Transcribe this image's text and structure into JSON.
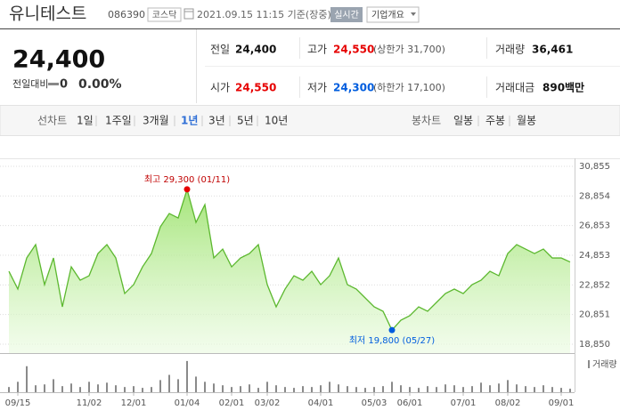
{
  "header": {
    "name": "유니테스트",
    "code": "086390",
    "market": "코스닥",
    "time": "2021.09.15 11:15 기준(장중)",
    "realtime": "실시간",
    "company_info": "기업개요"
  },
  "quote": {
    "price": "24,400",
    "change_label": "전일대비",
    "change": "0",
    "change_rate": "0.00%",
    "stats": [
      {
        "label": "전일",
        "value": "24,400"
      },
      {
        "label": "고가",
        "value": "24,550",
        "note": "(상한가 31,700)"
      },
      {
        "label": "거래량",
        "value": "36,461"
      },
      {
        "label": "시가",
        "value": "24,550"
      },
      {
        "label": "저가",
        "value": "24,300",
        "note": "(하한가 17,100)"
      },
      {
        "label": "거래대금",
        "value": "890",
        "unit": "백만"
      }
    ]
  },
  "tabs": {
    "line_label": "선차트",
    "line": [
      "1일",
      "1주일",
      "3개월",
      "1년",
      "3년",
      "5년",
      "10년"
    ],
    "candle_label": "봉차트",
    "candle": [
      "일봉",
      "주봉",
      "월봉"
    ]
  },
  "chart_data": {
    "type": "line",
    "categories": [
      null,
      "09/15",
      null,
      null,
      null,
      null,
      null,
      null,
      null,
      "11/02",
      null,
      null,
      null,
      null,
      "12/01",
      null,
      null,
      null,
      null,
      null,
      "01/04",
      null,
      null,
      null,
      null,
      "02/01",
      null,
      null,
      null,
      "03/02",
      null,
      null,
      null,
      null,
      null,
      "04/01",
      null,
      null,
      null,
      null,
      null,
      "05/03",
      null,
      null,
      null,
      "06/01",
      null,
      null,
      null,
      null,
      null,
      "07/01",
      null,
      null,
      null,
      null,
      "08/02",
      null,
      null,
      null,
      null,
      null,
      "09/01",
      null
    ],
    "series": [
      {
        "color": "#5cb82f",
        "values": [
          23770,
          22570,
          24670,
          25570,
          22870,
          24670,
          21370,
          24070,
          23170,
          23470,
          24970,
          25570,
          24670,
          22270,
          22870,
          24070,
          24970,
          26770,
          27670,
          27370,
          29300,
          27070,
          28270,
          24670,
          25270,
          24070,
          24670,
          24970,
          25570,
          22870,
          21370,
          22570,
          23470,
          23170,
          23770,
          22870,
          23470,
          24670,
          22870,
          22570,
          21970,
          21370,
          21070,
          19800,
          20470,
          20770,
          21370,
          21070,
          21670,
          22270,
          22570,
          22270,
          22870,
          23170,
          23770,
          23470,
          24970,
          25570,
          25270,
          24970,
          25270,
          24670,
          24670,
          24400
        ]
      }
    ],
    "ylim": [
      18850,
      30855
    ],
    "yticks": [
      {
        "value": 30855,
        "label": "30,855"
      },
      {
        "value": 28854,
        "label": "28,854"
      },
      {
        "value": 26853,
        "label": "26,853"
      },
      {
        "value": 24853,
        "label": "24,853"
      },
      {
        "value": 22852,
        "label": "22,852"
      },
      {
        "value": 20851,
        "label": "20,851"
      },
      {
        "value": 18850,
        "label": "18,850"
      }
    ],
    "grid": true,
    "max_label": "최고 29,300 (01/11)",
    "min_label": "최저 19,800 (05/27)",
    "volume": {
      "name": "거래량",
      "color": "#8a8a8a",
      "ylim": [
        0,
        400
      ],
      "values": [
        60,
        120,
        300,
        80,
        90,
        150,
        70,
        100,
        60,
        120,
        90,
        110,
        80,
        60,
        70,
        50,
        60,
        140,
        200,
        150,
        360,
        180,
        120,
        100,
        80,
        60,
        70,
        90,
        50,
        120,
        80,
        60,
        50,
        70,
        60,
        80,
        120,
        90,
        70,
        60,
        50,
        60,
        70,
        120,
        80,
        60,
        50,
        70,
        60,
        90,
        80,
        60,
        70,
        110,
        80,
        100,
        140,
        90,
        70,
        60,
        80,
        60,
        50,
        40
      ]
    }
  }
}
